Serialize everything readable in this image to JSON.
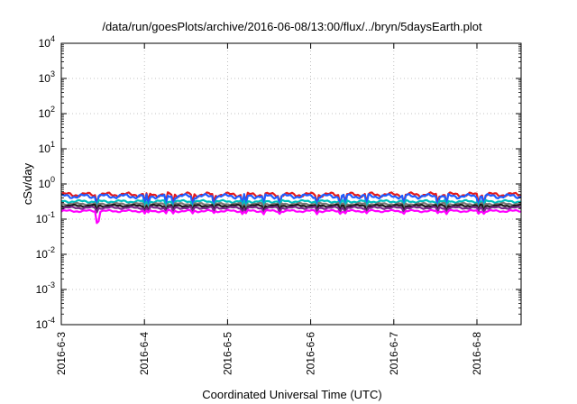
{
  "chart_data": {
    "type": "line",
    "title": "/data/run/goesPlots/archive/2016-06-08/13:00/flux/../bryn/5daysEarth.plot",
    "xlabel": "Coordinated Universal Time (UTC)",
    "ylabel": "cSv/day",
    "yscale": "log",
    "ylim": [
      0.0001,
      10000
    ],
    "xlim": [
      "2016-06-03",
      "2016-06-08 13:00"
    ],
    "x_ticks": [
      "2016-6-3",
      "2016-6-4",
      "2016-6-5",
      "2016-6-6",
      "2016-6-7",
      "2016-6-8"
    ],
    "y_ticks": [
      {
        "base": "10",
        "exp": "-4"
      },
      {
        "base": "10",
        "exp": "-3"
      },
      {
        "base": "10",
        "exp": "-2"
      },
      {
        "base": "10",
        "exp": "-1"
      },
      {
        "base": "10",
        "exp": "0"
      },
      {
        "base": "10",
        "exp": "1"
      },
      {
        "base": "10",
        "exp": "2"
      },
      {
        "base": "10",
        "exp": "3"
      },
      {
        "base": "10",
        "exp": "4"
      }
    ],
    "grid": true,
    "series": [
      {
        "color": "#e41a1c",
        "base": 0.5,
        "amp": 0.1,
        "dip": 0.6
      },
      {
        "color": "#1f5cff",
        "base": 0.45,
        "amp": 0.1,
        "dip": 0.55
      },
      {
        "color": "#00bfbf",
        "base": 0.32,
        "amp": 0.06,
        "dip": 0.65
      },
      {
        "color": "#777777",
        "base": 0.27,
        "amp": 0.05,
        "dip": 0.7
      },
      {
        "color": "#1a1a1a",
        "base": 0.24,
        "amp": 0.05,
        "dip": 0.7
      },
      {
        "color": "#7a2a8a",
        "base": 0.21,
        "amp": 0.05,
        "dip": 0.75
      },
      {
        "color": "#ff00ff",
        "base": 0.17,
        "amp": 0.05,
        "dip": 0.85
      }
    ]
  }
}
